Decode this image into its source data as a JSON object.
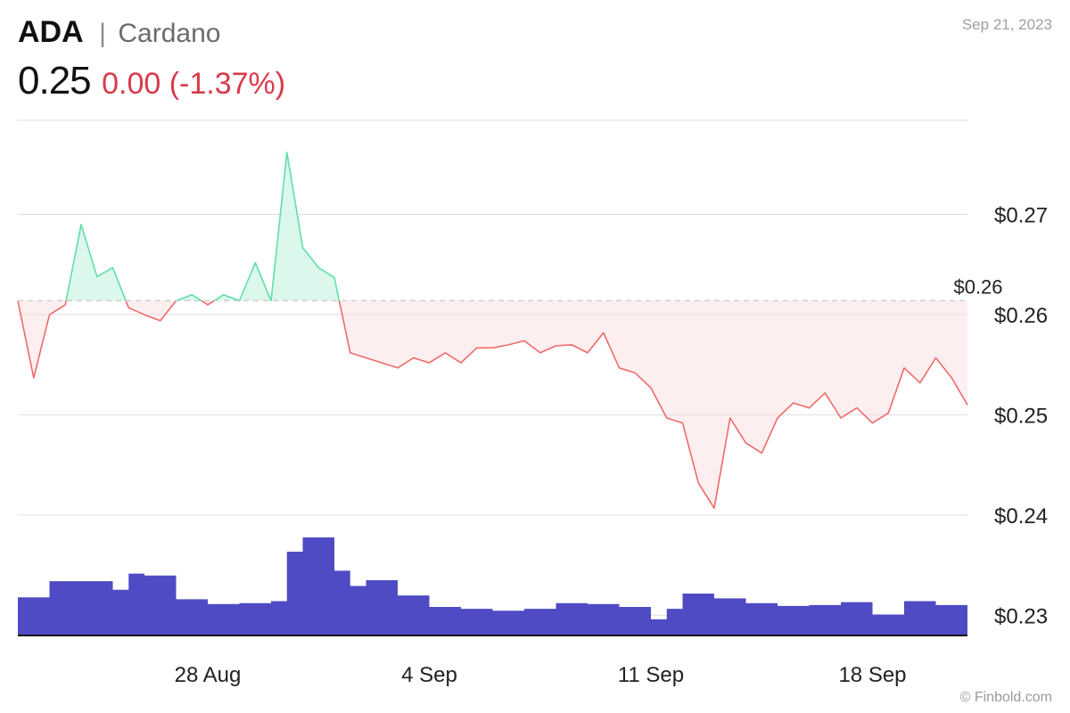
{
  "header": {
    "ticker": "ADA",
    "separator": "|",
    "name": "Cardano",
    "price": "0.25",
    "change": "0.00 (-1.37%)",
    "date": "Sep 21, 2023"
  },
  "footer": {
    "brand": "© Finbold.com"
  },
  "colors": {
    "up_line": "#5ee0a8",
    "up_fill": "#d8f6e9",
    "down_line": "#ee6a6a",
    "down_fill": "#fbe0e0",
    "volume": "#4f4bc4",
    "change": "#d93a4a",
    "grid": "#dddddd"
  },
  "chart_data": {
    "type": "area",
    "y_tick_labels": [
      "$0.23",
      "$0.24",
      "$0.25",
      "$0.26",
      "$0.27"
    ],
    "y_ticks": [
      0.23,
      0.24,
      0.25,
      0.26,
      0.27
    ],
    "ylim": [
      0.2278,
      0.2792
    ],
    "x_tick_labels": [
      "28 Aug",
      "4 Sep",
      "11 Sep",
      "18 Sep"
    ],
    "x_ticks": [
      "2023-08-28",
      "2023-09-04",
      "2023-09-11",
      "2023-09-18"
    ],
    "xlim": [
      "2023-08-22",
      "2023-09-21"
    ],
    "reference_price": 0.2612,
    "reference_label": "$0.26",
    "price_series": {
      "name": "ADA",
      "x": [
        "2023-08-22",
        "2023-08-22T12:00",
        "2023-08-23",
        "2023-08-23T12:00",
        "2023-08-24",
        "2023-08-24T12:00",
        "2023-08-25",
        "2023-08-25T12:00",
        "2023-08-26",
        "2023-08-26T12:00",
        "2023-08-27",
        "2023-08-27T12:00",
        "2023-08-28",
        "2023-08-28T12:00",
        "2023-08-29",
        "2023-08-29T12:00",
        "2023-08-30",
        "2023-08-30T12:00",
        "2023-08-31",
        "2023-08-31T12:00",
        "2023-09-01",
        "2023-09-01T12:00",
        "2023-09-02",
        "2023-09-02T12:00",
        "2023-09-03",
        "2023-09-03T12:00",
        "2023-09-04",
        "2023-09-04T12:00",
        "2023-09-05",
        "2023-09-05T12:00",
        "2023-09-06",
        "2023-09-06T12:00",
        "2023-09-07",
        "2023-09-07T12:00",
        "2023-09-08",
        "2023-09-08T12:00",
        "2023-09-09",
        "2023-09-09T12:00",
        "2023-09-10",
        "2023-09-10T12:00",
        "2023-09-11",
        "2023-09-11T12:00",
        "2023-09-12",
        "2023-09-12T12:00",
        "2023-09-13",
        "2023-09-13T12:00",
        "2023-09-14",
        "2023-09-14T12:00",
        "2023-09-15",
        "2023-09-15T12:00",
        "2023-09-16",
        "2023-09-16T12:00",
        "2023-09-17",
        "2023-09-17T12:00",
        "2023-09-18",
        "2023-09-18T12:00",
        "2023-09-19",
        "2023-09-19T12:00",
        "2023-09-20",
        "2023-09-20T12:00",
        "2023-09-21"
      ],
      "values": [
        0.2612,
        0.2535,
        0.2598,
        0.2608,
        0.2688,
        0.2636,
        0.2645,
        0.2605,
        0.2598,
        0.2592,
        0.2612,
        0.2618,
        0.2608,
        0.2618,
        0.2612,
        0.265,
        0.2612,
        0.276,
        0.2665,
        0.2645,
        0.2635,
        0.256,
        0.2555,
        0.255,
        0.2545,
        0.2555,
        0.255,
        0.256,
        0.255,
        0.2565,
        0.2565,
        0.2568,
        0.2572,
        0.256,
        0.2567,
        0.2568,
        0.256,
        0.258,
        0.2545,
        0.254,
        0.2525,
        0.2495,
        0.249,
        0.243,
        0.2405,
        0.2495,
        0.247,
        0.246,
        0.2495,
        0.251,
        0.2505,
        0.252,
        0.2495,
        0.2505,
        0.249,
        0.25,
        0.2545,
        0.253,
        0.2555,
        0.2535,
        0.2508
      ]
    },
    "volume_series": {
      "x": [
        "2023-08-22",
        "2023-08-23",
        "2023-08-24",
        "2023-08-25",
        "2023-08-25T12:00",
        "2023-08-26",
        "2023-08-27",
        "2023-08-28",
        "2023-08-29",
        "2023-08-30",
        "2023-08-30T12:00",
        "2023-08-31",
        "2023-09-01",
        "2023-09-01T12:00",
        "2023-09-02",
        "2023-09-03",
        "2023-09-04",
        "2023-09-05",
        "2023-09-06",
        "2023-09-07",
        "2023-09-08",
        "2023-09-09",
        "2023-09-10",
        "2023-09-11",
        "2023-09-11T12:00",
        "2023-09-12",
        "2023-09-13",
        "2023-09-14",
        "2023-09-15",
        "2023-09-16",
        "2023-09-17",
        "2023-09-18",
        "2023-09-19",
        "2023-09-20",
        "2023-09-21"
      ],
      "values": [
        40,
        57,
        57,
        48,
        65,
        63,
        38,
        33,
        34,
        36,
        88,
        103,
        68,
        52,
        58,
        42,
        30,
        28,
        26,
        28,
        34,
        33,
        30,
        17,
        28,
        44,
        39,
        34,
        31,
        32,
        35,
        22,
        36,
        32,
        33
      ]
    }
  }
}
